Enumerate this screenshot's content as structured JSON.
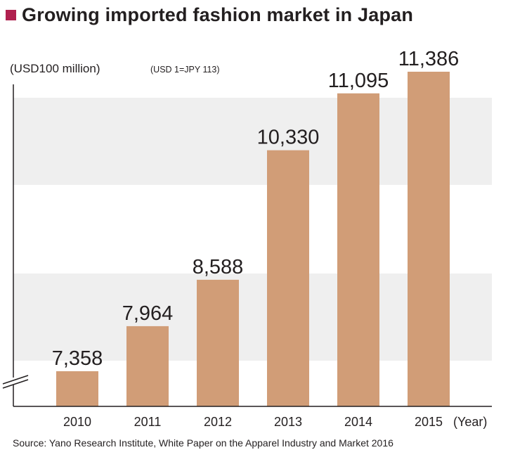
{
  "title": "Growing imported fashion market in Japan",
  "unit_label": "(USD100 million)",
  "unit_note": "(USD 1=JPY 113)",
  "source": "Source: Yano Research Institute, White Paper on the Apparel Industry and Market 2016",
  "colors": {
    "bar": "#d19d77",
    "band": "#efefef",
    "accent": "#b0204f"
  },
  "chart_data": {
    "type": "bar",
    "categories": [
      "2010",
      "2011",
      "2012",
      "2013",
      "2014",
      "2015"
    ],
    "values": [
      7358,
      7964,
      8588,
      10330,
      11095,
      11386
    ],
    "value_labels": [
      "7,358",
      "7,964",
      "8,588",
      "10,330",
      "11,095",
      "11,386"
    ],
    "x_unit": "(Year)",
    "axis_break": true,
    "grid": false,
    "legend": "none"
  }
}
